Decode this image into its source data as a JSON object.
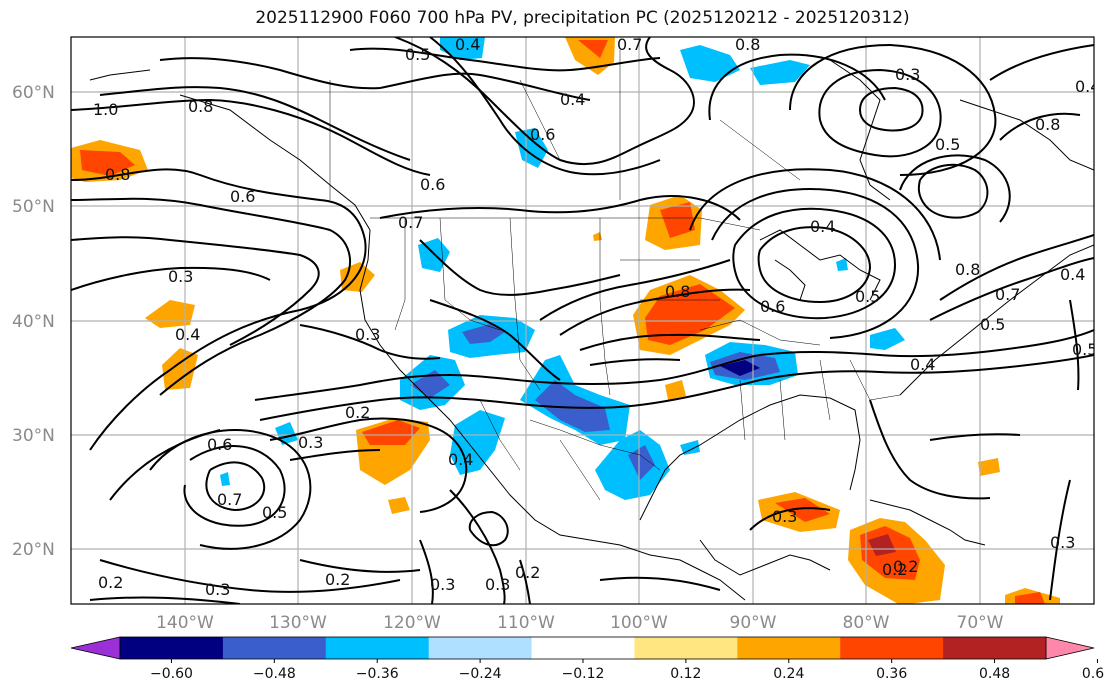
{
  "title": "2025112900 F060 700 hPa PV, precipitation PC (2025120212 - 2025120312)",
  "lat_labels": [
    "60°N",
    "50°N",
    "40°N",
    "30°N",
    "20°N"
  ],
  "lon_labels": [
    "140°W",
    "130°W",
    "120°W",
    "110°W",
    "100°W",
    "90°W",
    "80°W",
    "70°W"
  ],
  "contour_labels": [
    "0.4",
    "0.7",
    "0.5",
    "0.4",
    "0.3",
    "1.0",
    "0.8",
    "0.6",
    "0.8",
    "0.6",
    "0.6",
    "0.7",
    "0.3",
    "0.4",
    "0.4",
    "0.8",
    "0.5",
    "0.4",
    "0.6",
    "0.8",
    "0.5",
    "0.4",
    "0.7",
    "0.5",
    "0.8",
    "0.2",
    "0.3",
    "0.6",
    "0.7",
    "0.5",
    "0.4",
    "0.2",
    "0.3",
    "0.3",
    "0.2",
    "0.3",
    "0.3",
    "0.2",
    "0.3",
    "0.2",
    "0.2",
    "0.3",
    "0.5",
    "0.4",
    "0.8"
  ],
  "colorbar": {
    "ticks": [
      "−0.60",
      "−0.48",
      "−0.36",
      "−0.24",
      "−0.12",
      "0.12",
      "0.24",
      "0.36",
      "0.48",
      "0.60"
    ],
    "colors": {
      "under": "#9b30d6",
      "bins": [
        "#000080",
        "#3a5fcd",
        "#00bfff",
        "#b0e0ff",
        "#ffffff",
        "#ffe680",
        "#ffa500",
        "#ff4500",
        "#b22222"
      ],
      "over": "#ff88aa"
    }
  }
}
